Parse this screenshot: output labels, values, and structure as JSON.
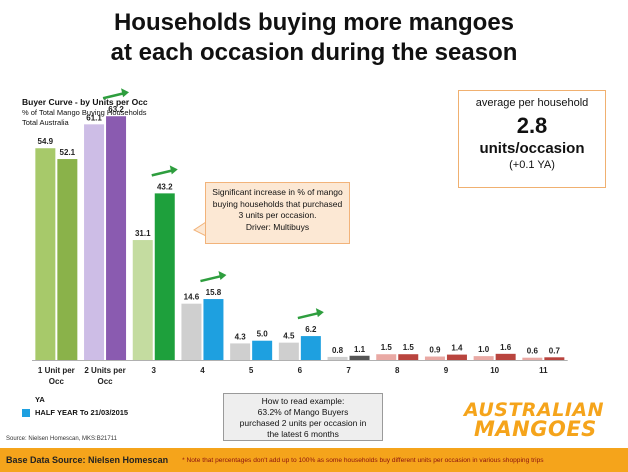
{
  "title_line1": "Households buying more mangoes",
  "title_line2": "at each occasion during the season",
  "chart_header": {
    "title": "Buyer Curve - by Units per Occ",
    "subtitle": "% of Total Mango Buying Households",
    "region": "Total Australia"
  },
  "kpi": {
    "label": "average per household",
    "value": "2.8",
    "unit": "units/occasion",
    "change": "(+0.1 YA)"
  },
  "callout": {
    "line1": "Significant increase in % of mango",
    "line2": "buying households that purchased",
    "line3": "3 units per occasion.",
    "line4": "Driver: Multibuys"
  },
  "how_to_read": {
    "line1": "How to read example:",
    "line2": "63.2% of Mango Buyers",
    "line3": "purchased 2 units per occasion in",
    "line4": "the latest 6 months"
  },
  "source": "Source: Nielsen Homescan, MKS:B21711",
  "logo": {
    "line1": "AUSTRALIAN",
    "line2": "MANGOES"
  },
  "footer": {
    "base": "Base Data Source: Nielsen Homescan",
    "note": "* Note that percentages don't add up to 100% as some households buy different units per occasion in various shopping  trips"
  },
  "colors": {
    "accent": "#f5a41b",
    "arrow": "#2e9e3e"
  },
  "chart_data": {
    "type": "bar",
    "categories": [
      "1 Unit per Occ",
      "2 Units per Occ",
      "3",
      "4",
      "5",
      "6",
      "7",
      "8",
      "9",
      "10",
      "11"
    ],
    "series": [
      {
        "name": "YA",
        "values": [
          54.9,
          61.1,
          31.1,
          14.6,
          4.3,
          4.5,
          0.8,
          1.5,
          0.9,
          1.0,
          0.6
        ],
        "colors": [
          "#a7c96a",
          "#cdbde6",
          "#c4dca0",
          "#cfcfcf",
          "#cfcfcf",
          "#cfcfcf",
          "#cfcfcf",
          "#e9a9a4",
          "#e9a9a4",
          "#e9a9a4",
          "#e9a9a4"
        ]
      },
      {
        "name": "HALF YEAR To 21/03/2015",
        "values": [
          52.1,
          63.2,
          43.2,
          15.8,
          5.0,
          6.2,
          1.1,
          1.5,
          1.4,
          1.6,
          0.7
        ],
        "colors": [
          "#8ab24a",
          "#8a5bb0",
          "#1ea03c",
          "#1ea0e0",
          "#1ea0e0",
          "#1ea0e0",
          "#555555",
          "#b9443e",
          "#b9443e",
          "#b9443e",
          "#b9443e"
        ]
      }
    ],
    "legend_position": "bottom-left",
    "increase_arrows_after_categories": [
      "2 Units per Occ",
      "3",
      "4",
      "6"
    ],
    "ylim": [
      0,
      70
    ],
    "grid": false
  }
}
